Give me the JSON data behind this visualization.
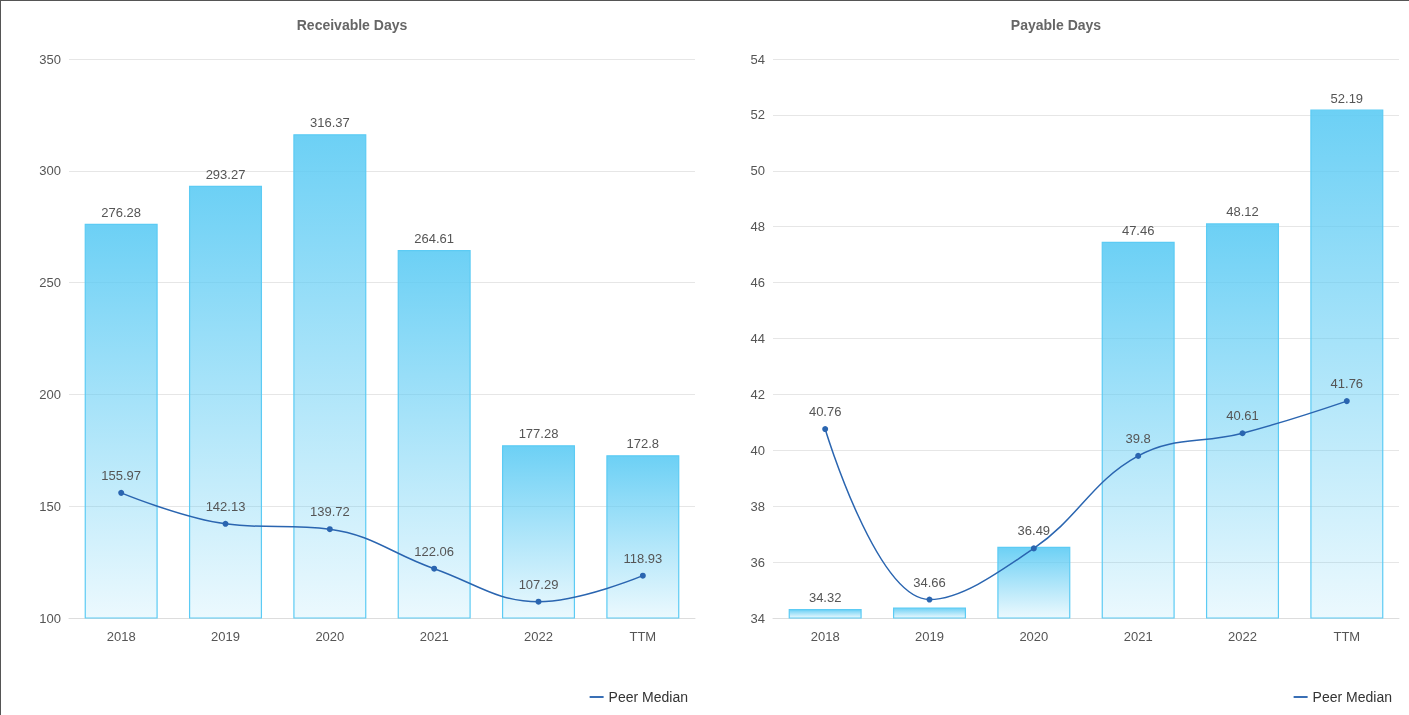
{
  "chart_data": [
    {
      "type": "bar",
      "title": "Receivable Days",
      "categories": [
        "2018",
        "2019",
        "2020",
        "2021",
        "2022",
        "TTM"
      ],
      "ylim": [
        100,
        350
      ],
      "yticks": [
        100,
        150,
        200,
        250,
        300,
        350
      ],
      "grid": "y",
      "data_labels": true,
      "legend": "bottom right",
      "series": [
        {
          "color": "#5ccbf4",
          "values": [
            276.28,
            293.27,
            316.37,
            264.61,
            177.28,
            172.8
          ]
        },
        {
          "type": "line",
          "name": "Peer Median",
          "color": "#2a65b0",
          "marker": "circle",
          "values": [
            155.97,
            142.13,
            139.72,
            122.06,
            107.29,
            118.93
          ]
        }
      ]
    },
    {
      "type": "bar",
      "title": "Payable Days",
      "categories": [
        "2018",
        "2019",
        "2020",
        "2021",
        "2022",
        "TTM"
      ],
      "ylim": [
        34,
        54
      ],
      "yticks": [
        34,
        36,
        38,
        40,
        42,
        44,
        46,
        48,
        50,
        52,
        54
      ],
      "grid": "y",
      "data_labels": true,
      "legend": "bottom right",
      "series": [
        {
          "color": "#5ccbf4",
          "values": [
            34.32,
            34.38,
            36.55,
            47.46,
            48.12,
            52.19
          ],
          "value_labels": [
            "34.32",
            null,
            null,
            "47.46",
            "48.12",
            "52.19"
          ]
        },
        {
          "type": "line",
          "name": "Peer Median",
          "color": "#2a65b0",
          "marker": "circle",
          "values": [
            40.76,
            34.66,
            36.49,
            39.8,
            40.61,
            41.76
          ]
        }
      ]
    }
  ]
}
